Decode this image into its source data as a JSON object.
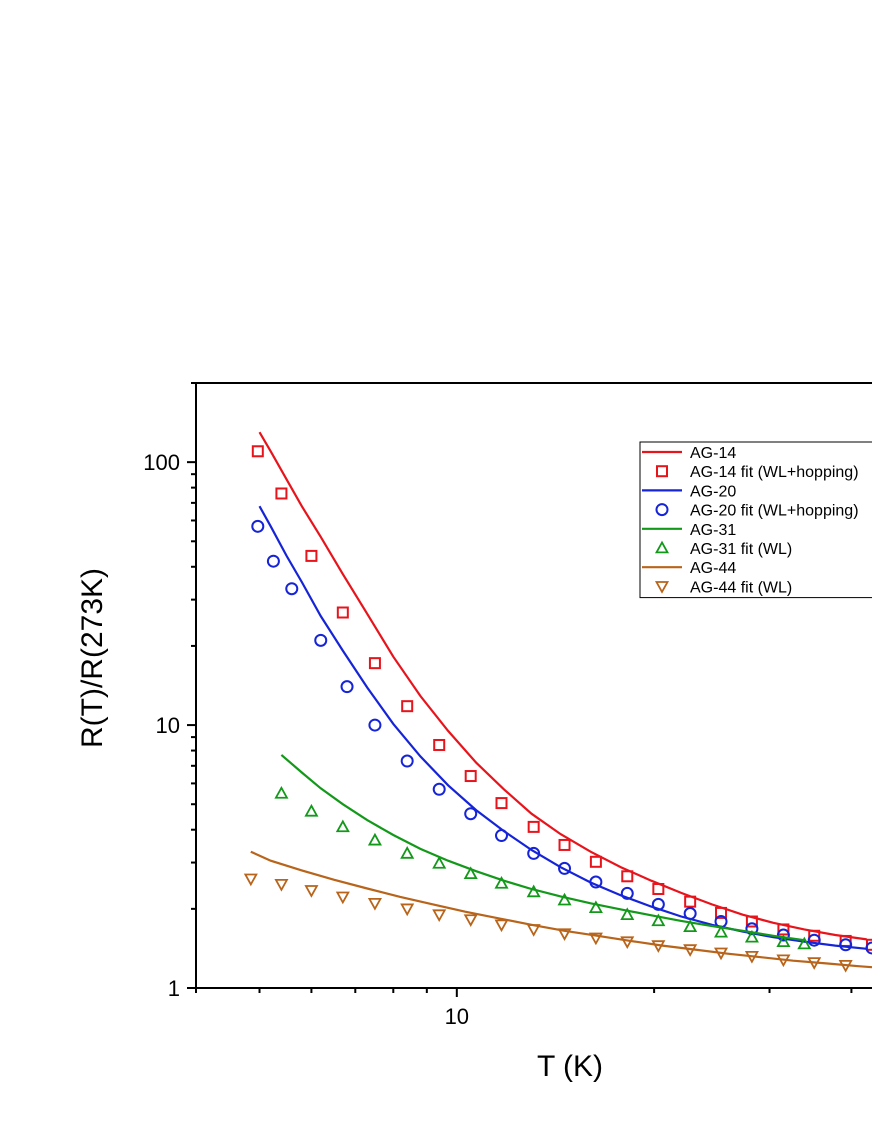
{
  "chart_data": {
    "type": "scatter",
    "xlabel": "T (K)",
    "ylabel": "R(T)/R(273K)",
    "x_scale": "log",
    "y_scale": "log",
    "xlim": [
      4.0,
      43
    ],
    "ylim": [
      1,
      200
    ],
    "x_ticks": [
      10
    ],
    "y_ticks": [
      1,
      10,
      100
    ],
    "legend_position": "top-right",
    "series": [
      {
        "name": "AG-14",
        "kind": "line",
        "color": "#e8141c",
        "x": [
          5.0,
          5.2,
          5.5,
          5.8,
          6.2,
          6.7,
          7.3,
          8.0,
          8.8,
          9.7,
          10.7,
          11.8,
          13.0,
          14.4,
          16.0,
          17.8,
          19.8,
          22.0,
          24.5,
          27.3,
          30.4,
          33.9,
          37.8,
          42.2
        ],
        "y": [
          130,
          110,
          86,
          68,
          52,
          37.5,
          26.5,
          18.2,
          12.9,
          9.5,
          7.2,
          5.7,
          4.6,
          3.85,
          3.3,
          2.88,
          2.56,
          2.3,
          2.08,
          1.9,
          1.77,
          1.67,
          1.59,
          1.53
        ]
      },
      {
        "name": "AG-14 fit (WL+hopping)",
        "kind": "markers",
        "marker": "square",
        "color": "#e8141c",
        "x": [
          4.97,
          5.4,
          6.0,
          6.7,
          7.5,
          8.4,
          9.4,
          10.5,
          11.7,
          13.1,
          14.6,
          16.3,
          18.2,
          20.3,
          22.7,
          25.3,
          28.2,
          31.5,
          35.1,
          39.2,
          43.0
        ],
        "y": [
          110,
          76,
          44,
          26.8,
          17.2,
          11.8,
          8.4,
          6.4,
          5.05,
          4.1,
          3.5,
          3.02,
          2.66,
          2.38,
          2.13,
          1.93,
          1.79,
          1.67,
          1.58,
          1.51,
          1.46
        ]
      },
      {
        "name": "AG-20",
        "kind": "line",
        "color": "#1624d8",
        "x": [
          5.0,
          5.2,
          5.5,
          5.8,
          6.2,
          6.7,
          7.3,
          8.0,
          8.8,
          9.7,
          10.7,
          11.8,
          13.0,
          14.4,
          16.0,
          17.8,
          19.8,
          22.0,
          24.5,
          27.3,
          30.4,
          33.9,
          37.8,
          42.2
        ],
        "y": [
          68,
          57,
          44,
          35,
          26,
          19.2,
          13.9,
          10.1,
          7.6,
          5.9,
          4.75,
          3.95,
          3.35,
          2.88,
          2.52,
          2.25,
          2.04,
          1.87,
          1.74,
          1.64,
          1.56,
          1.5,
          1.45,
          1.41
        ]
      },
      {
        "name": "AG-20 fit (WL+hopping)",
        "kind": "markers",
        "marker": "circle",
        "color": "#1624d8",
        "x": [
          4.97,
          5.25,
          5.6,
          6.2,
          6.8,
          7.5,
          8.4,
          9.4,
          10.5,
          11.7,
          13.1,
          14.6,
          16.3,
          18.2,
          20.3,
          22.7,
          25.3,
          28.2,
          31.5,
          35.1,
          39.2,
          43.0
        ],
        "y": [
          57,
          42,
          33,
          21,
          14,
          10,
          7.3,
          5.7,
          4.6,
          3.8,
          3.25,
          2.85,
          2.53,
          2.29,
          2.08,
          1.92,
          1.79,
          1.68,
          1.59,
          1.52,
          1.46,
          1.42
        ]
      },
      {
        "name": "AG-31",
        "kind": "line",
        "color": "#13991a",
        "x": [
          5.4,
          5.8,
          6.2,
          6.7,
          7.3,
          8.0,
          8.8,
          9.7,
          10.7,
          11.8,
          13.0,
          14.4,
          16.0,
          17.8,
          19.8,
          22.0,
          24.5,
          27.3,
          30.4,
          33.9
        ],
        "y": [
          7.7,
          6.6,
          5.75,
          5.0,
          4.35,
          3.82,
          3.38,
          3.05,
          2.78,
          2.56,
          2.38,
          2.23,
          2.1,
          1.99,
          1.89,
          1.8,
          1.72,
          1.65,
          1.58,
          1.52
        ]
      },
      {
        "name": "AG-31 fit (WL)",
        "kind": "markers",
        "marker": "triangle-up",
        "color": "#13991a",
        "x": [
          5.4,
          6.0,
          6.7,
          7.5,
          8.4,
          9.4,
          10.5,
          11.7,
          13.1,
          14.6,
          16.3,
          18.2,
          20.3,
          22.7,
          25.3,
          28.2,
          31.5,
          33.9
        ],
        "y": [
          5.5,
          4.7,
          4.1,
          3.65,
          3.25,
          2.98,
          2.72,
          2.5,
          2.32,
          2.16,
          2.02,
          1.9,
          1.8,
          1.71,
          1.63,
          1.56,
          1.5,
          1.47
        ]
      },
      {
        "name": "AG-44",
        "kind": "line",
        "color": "#b8641a",
        "x": [
          4.85,
          5.2,
          5.8,
          6.5,
          7.3,
          8.2,
          9.2,
          10.3,
          11.6,
          13.0,
          14.6,
          16.4,
          18.4,
          20.6,
          23.1,
          25.9,
          29.1,
          32.6,
          36.6,
          41.0,
          43.0
        ],
        "y": [
          3.3,
          3.05,
          2.8,
          2.58,
          2.39,
          2.22,
          2.08,
          1.95,
          1.84,
          1.74,
          1.65,
          1.58,
          1.51,
          1.45,
          1.4,
          1.35,
          1.31,
          1.27,
          1.24,
          1.21,
          1.2
        ]
      },
      {
        "name": "AG-44 fit (WL)",
        "kind": "markers",
        "marker": "triangle-down",
        "color": "#b8641a",
        "x": [
          4.85,
          5.4,
          6.0,
          6.7,
          7.5,
          8.4,
          9.4,
          10.5,
          11.7,
          13.1,
          14.6,
          16.3,
          18.2,
          20.3,
          22.7,
          25.3,
          28.2,
          31.5,
          35.1,
          39.2
        ],
        "y": [
          2.6,
          2.48,
          2.35,
          2.22,
          2.1,
          2.0,
          1.9,
          1.82,
          1.74,
          1.67,
          1.61,
          1.55,
          1.5,
          1.45,
          1.4,
          1.36,
          1.32,
          1.28,
          1.25,
          1.22
        ]
      }
    ]
  }
}
